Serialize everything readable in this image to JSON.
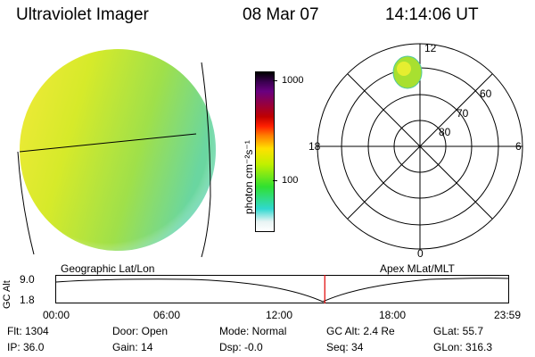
{
  "header": {
    "instrument": "Ultraviolet Imager",
    "date": "08 Mar 07",
    "time": "14:14:06 UT"
  },
  "colorbar": {
    "unit_label": "photon cm⁻²s⁻¹",
    "ticks": [
      "1000",
      "100"
    ]
  },
  "polar_plot": {
    "mlt_labels": [
      "12",
      "18",
      "6",
      "0"
    ],
    "lat_labels": [
      "60",
      "70",
      "80"
    ]
  },
  "timeline": {
    "left_title": "Geographic Lat/Lon",
    "right_title": "Apex MLat/MLT",
    "axis_label": "GC Alt",
    "y_ticks": [
      "9.0",
      "1.8"
    ],
    "x_ticks": [
      "00:00",
      "06:00",
      "12:00",
      "18:00",
      "23:59"
    ],
    "current_time_fraction": 0.593,
    "line_color": "#e00000"
  },
  "info": {
    "flt": "Flt: 1304",
    "ip": "IP: 36.0",
    "door": "Door: Open",
    "gain": "Gain: 14",
    "mode": "Mode: Normal",
    "dsp": "Dsp:    -0.0",
    "gc_alt": "GC Alt: 2.4 Re",
    "seq": "Seq: 34",
    "glat": "GLat:  55.7",
    "glon": "GLon: 316.3"
  }
}
